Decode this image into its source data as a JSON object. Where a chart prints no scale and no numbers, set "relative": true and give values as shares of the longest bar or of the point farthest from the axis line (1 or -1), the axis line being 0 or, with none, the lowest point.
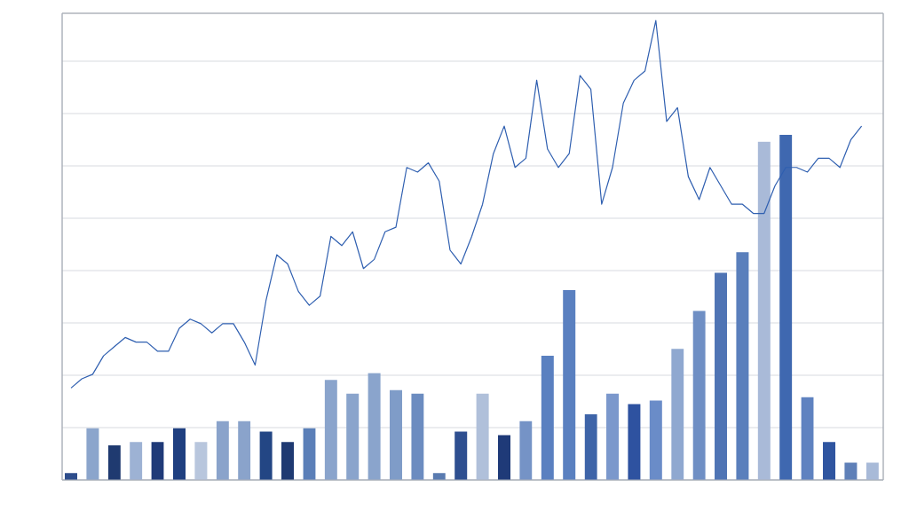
{
  "chart_data": [
    {
      "type": "bar",
      "relative": true,
      "grid": "y",
      "categories": [
        null,
        null,
        null,
        null,
        null,
        null,
        null,
        null,
        null,
        null,
        null,
        null,
        null,
        null,
        null,
        null,
        null,
        null,
        null,
        null,
        null,
        null,
        null,
        null,
        null,
        null,
        null,
        null,
        null,
        null,
        null,
        null,
        null,
        null,
        null,
        null,
        null,
        null
      ],
      "values": [
        0.02,
        0.15,
        0.1,
        0.11,
        0.11,
        0.15,
        0.11,
        0.17,
        0.17,
        0.14,
        0.11,
        0.15,
        0.29,
        0.25,
        0.31,
        0.26,
        0.25,
        0.02,
        0.14,
        0.25,
        0.13,
        0.17,
        0.36,
        0.55,
        0.19,
        0.25,
        0.22,
        0.23,
        0.38,
        0.49,
        0.6,
        0.66,
        0.98,
        1.0,
        0.24,
        0.11,
        0.05,
        0.05
      ],
      "colors": [
        "#2e4d8c",
        "#8ba5cc",
        "#1f3a70",
        "#9db2d4",
        "#1f3a78",
        "#1f3f80",
        "#b8c6dd",
        "#8aa3cb",
        "#8aa3cb",
        "#234684",
        "#1f3a72",
        "#5b7fb8",
        "#8aa4cc",
        "#8aa4cc",
        "#8aa4cc",
        "#7f9cc8",
        "#6c8cc0",
        "#5a7bb0",
        "#2e4f90",
        "#b0c0da",
        "#1f3a78",
        "#7593c6",
        "#5a80c0",
        "#5a80c0",
        "#3e64a8",
        "#7b98cc",
        "#2e52a0",
        "#6a8cc8",
        "#8fa8d0",
        "#6f8fc4",
        "#4f74b4",
        "#5a7fbc",
        "#a9bad8",
        "#3f68b0",
        "#5f82c0",
        "#2f55a0",
        "#5f80b8",
        "#a8bad8"
      ]
    },
    {
      "type": "line",
      "relative": true,
      "color": "#2f5fb0",
      "line_style": "solid",
      "categories": [
        null,
        null,
        null,
        null,
        null,
        null,
        null,
        null,
        null,
        null,
        null,
        null,
        null,
        null,
        null,
        null,
        null,
        null,
        null,
        null,
        null,
        null,
        null,
        null,
        null,
        null,
        null,
        null,
        null,
        null,
        null,
        null,
        null,
        null,
        null,
        null,
        null,
        null,
        null,
        null,
        null,
        null,
        null,
        null,
        null,
        null,
        null,
        null,
        null,
        null,
        null,
        null,
        null,
        null,
        null,
        null,
        null,
        null,
        null,
        null,
        null,
        null,
        null,
        null,
        null,
        null,
        null,
        null,
        null,
        null,
        null,
        null,
        null,
        null
      ],
      "values": [
        0.2,
        0.22,
        0.23,
        0.27,
        0.29,
        0.31,
        0.3,
        0.3,
        0.28,
        0.28,
        0.33,
        0.35,
        0.34,
        0.32,
        0.34,
        0.34,
        0.3,
        0.25,
        0.39,
        0.49,
        0.47,
        0.41,
        0.38,
        0.4,
        0.53,
        0.51,
        0.54,
        0.46,
        0.48,
        0.54,
        0.55,
        0.68,
        0.67,
        0.69,
        0.65,
        0.5,
        0.47,
        0.53,
        0.6,
        0.71,
        0.77,
        0.68,
        0.7,
        0.87,
        0.72,
        0.68,
        0.71,
        0.88,
        0.85,
        0.6,
        0.68,
        0.82,
        0.87,
        0.89,
        1.0,
        0.78,
        0.81,
        0.66,
        0.61,
        0.68,
        0.64,
        0.6,
        0.6,
        0.58,
        0.58,
        0.64,
        0.68,
        0.68,
        0.67,
        0.7,
        0.7,
        0.68,
        0.74,
        0.77
      ]
    }
  ]
}
